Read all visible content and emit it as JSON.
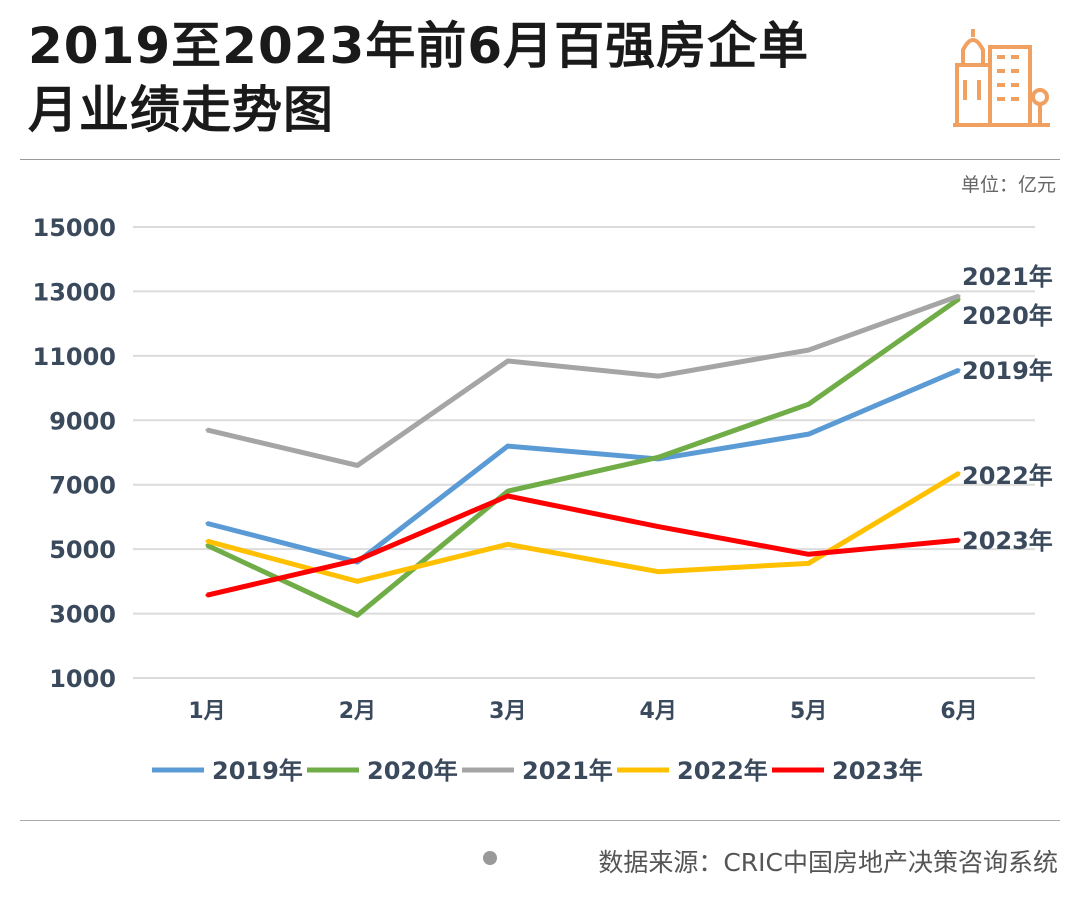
{
  "title_line1": "2019至2023年前6月百强房企单",
  "title_line2": "月业绩走势图",
  "unit": "单位：亿元",
  "source": "数据来源：CRIC中国房地产决策咨询系统",
  "logo_icon": "buildings-icon",
  "chart_data": {
    "type": "line",
    "categories": [
      "1月",
      "2月",
      "3月",
      "4月",
      "5月",
      "6月"
    ],
    "ylim": [
      1000,
      15000
    ],
    "yticks": [
      15000,
      13000,
      11000,
      9000,
      7000,
      5000,
      3000,
      1000
    ],
    "grid": true,
    "legend_placement": "bottom",
    "series": [
      {
        "name": "2019年",
        "color": "#5b9bd5",
        "values": [
          5800,
          4600,
          8200,
          7800,
          8570,
          10560
        ]
      },
      {
        "name": "2020年",
        "color": "#70ad47",
        "values": [
          5120,
          2950,
          6800,
          7850,
          9500,
          12770
        ]
      },
      {
        "name": "2021年",
        "color": "#a5a5a5",
        "values": [
          8700,
          7600,
          10840,
          10370,
          11180,
          12860
        ]
      },
      {
        "name": "2022年",
        "color": "#ffc000",
        "values": [
          5250,
          4000,
          5150,
          4300,
          4560,
          7360
        ]
      },
      {
        "name": "2023年",
        "color": "#ff0000",
        "values": [
          3570,
          4660,
          6650,
          5700,
          4840,
          5280
        ]
      }
    ]
  }
}
